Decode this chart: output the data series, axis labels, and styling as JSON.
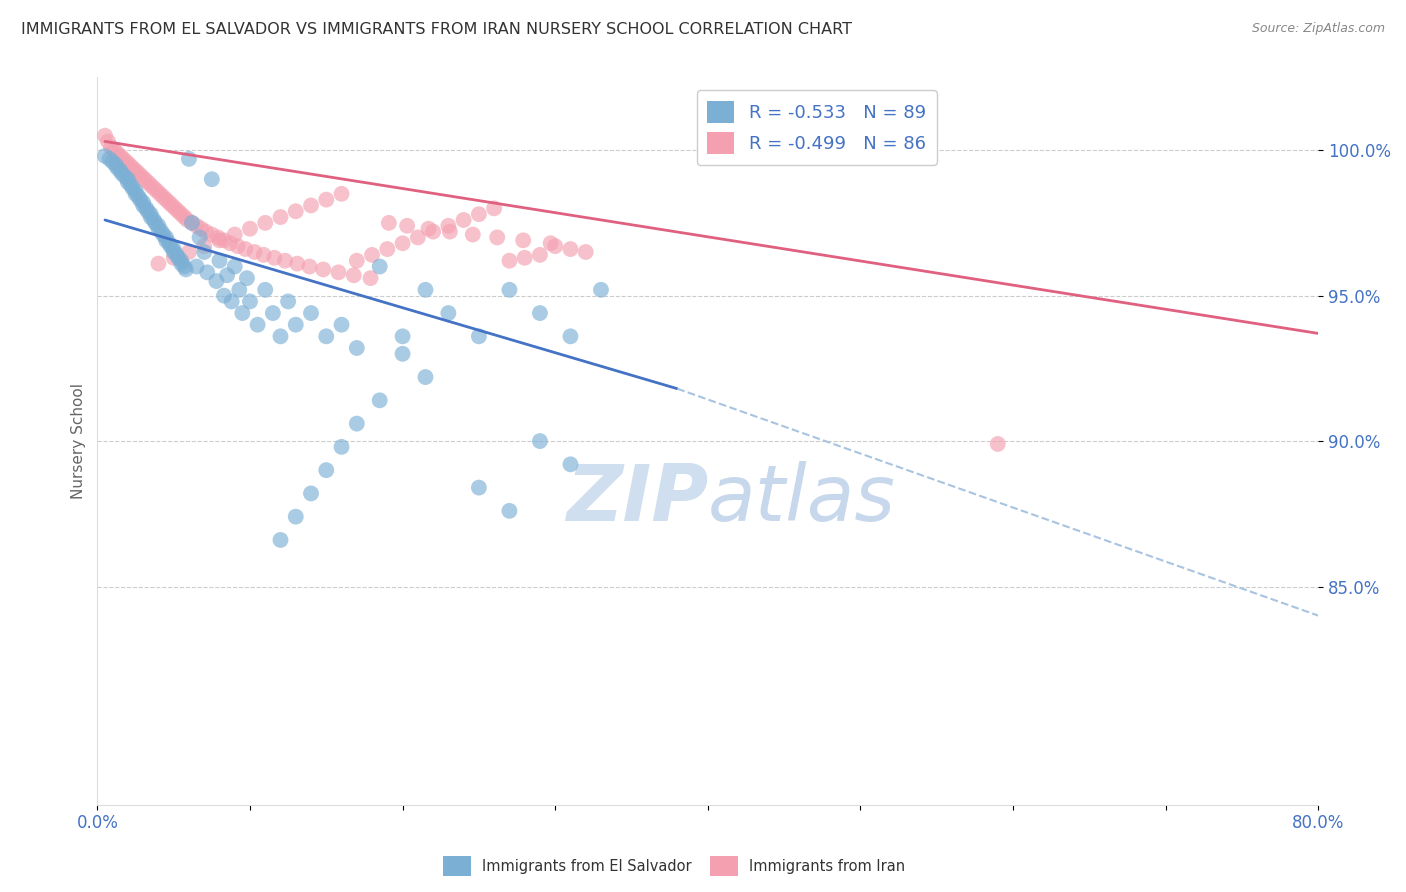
{
  "title": "IMMIGRANTS FROM EL SALVADOR VS IMMIGRANTS FROM IRAN NURSERY SCHOOL CORRELATION CHART",
  "source": "Source: ZipAtlas.com",
  "ylabel": "Nursery School",
  "y_tick_labels": [
    "100.0%",
    "95.0%",
    "90.0%",
    "85.0%"
  ],
  "y_tick_values": [
    1.0,
    0.95,
    0.9,
    0.85
  ],
  "x_range": [
    0.0,
    0.8
  ],
  "y_range": [
    0.775,
    1.025
  ],
  "blue_R": -0.533,
  "blue_N": 89,
  "pink_R": -0.499,
  "pink_N": 86,
  "blue_color": "#7BAFD4",
  "pink_color": "#F4A0B0",
  "blue_line_color": "#4472C4",
  "pink_line_color": "#E06080",
  "dashed_line_color": "#A8C4E0",
  "grid_color": "#CCCCCC",
  "title_color": "#333333",
  "axis_label_color": "#4472C4",
  "watermark_color": "#D0DFF0",
  "blue_scatter_x": [
    0.005,
    0.008,
    0.01,
    0.012,
    0.013,
    0.015,
    0.016,
    0.018,
    0.02,
    0.02,
    0.022,
    0.023,
    0.025,
    0.025,
    0.027,
    0.028,
    0.03,
    0.03,
    0.032,
    0.033,
    0.035,
    0.035,
    0.037,
    0.038,
    0.04,
    0.04,
    0.042,
    0.043,
    0.045,
    0.045,
    0.047,
    0.048,
    0.05,
    0.05,
    0.052,
    0.053,
    0.055,
    0.055,
    0.057,
    0.058,
    0.06,
    0.062,
    0.065,
    0.067,
    0.07,
    0.072,
    0.075,
    0.078,
    0.08,
    0.083,
    0.085,
    0.088,
    0.09,
    0.093,
    0.095,
    0.098,
    0.1,
    0.105,
    0.11,
    0.115,
    0.12,
    0.125,
    0.13,
    0.14,
    0.15,
    0.16,
    0.17,
    0.185,
    0.2,
    0.215,
    0.23,
    0.25,
    0.27,
    0.29,
    0.31,
    0.33,
    0.29,
    0.31,
    0.25,
    0.27,
    0.2,
    0.215,
    0.185,
    0.17,
    0.16,
    0.15,
    0.14,
    0.13,
    0.12
  ],
  "blue_scatter_y": [
    0.998,
    0.997,
    0.996,
    0.995,
    0.994,
    0.993,
    0.992,
    0.991,
    0.99,
    0.989,
    0.988,
    0.987,
    0.986,
    0.985,
    0.984,
    0.983,
    0.982,
    0.981,
    0.98,
    0.979,
    0.978,
    0.977,
    0.976,
    0.975,
    0.974,
    0.973,
    0.972,
    0.971,
    0.97,
    0.969,
    0.968,
    0.967,
    0.966,
    0.965,
    0.964,
    0.963,
    0.962,
    0.961,
    0.96,
    0.959,
    0.997,
    0.975,
    0.96,
    0.97,
    0.965,
    0.958,
    0.99,
    0.955,
    0.962,
    0.95,
    0.957,
    0.948,
    0.96,
    0.952,
    0.944,
    0.956,
    0.948,
    0.94,
    0.952,
    0.944,
    0.936,
    0.948,
    0.94,
    0.944,
    0.936,
    0.94,
    0.932,
    0.96,
    0.936,
    0.952,
    0.944,
    0.936,
    0.952,
    0.944,
    0.936,
    0.952,
    0.9,
    0.892,
    0.884,
    0.876,
    0.93,
    0.922,
    0.914,
    0.906,
    0.898,
    0.89,
    0.882,
    0.874,
    0.866
  ],
  "pink_scatter_x": [
    0.005,
    0.007,
    0.009,
    0.011,
    0.013,
    0.015,
    0.017,
    0.019,
    0.021,
    0.023,
    0.025,
    0.027,
    0.029,
    0.031,
    0.033,
    0.035,
    0.037,
    0.039,
    0.041,
    0.043,
    0.045,
    0.047,
    0.049,
    0.051,
    0.053,
    0.055,
    0.057,
    0.059,
    0.062,
    0.065,
    0.068,
    0.071,
    0.075,
    0.079,
    0.083,
    0.087,
    0.092,
    0.097,
    0.103,
    0.109,
    0.116,
    0.123,
    0.131,
    0.139,
    0.148,
    0.158,
    0.168,
    0.179,
    0.191,
    0.203,
    0.217,
    0.231,
    0.246,
    0.262,
    0.279,
    0.297,
    0.3,
    0.31,
    0.32,
    0.29,
    0.28,
    0.27,
    0.26,
    0.25,
    0.24,
    0.23,
    0.22,
    0.21,
    0.2,
    0.19,
    0.18,
    0.17,
    0.16,
    0.15,
    0.14,
    0.13,
    0.12,
    0.11,
    0.1,
    0.09,
    0.08,
    0.07,
    0.06,
    0.05,
    0.04,
    0.59
  ],
  "pink_scatter_y": [
    1.005,
    1.003,
    1.001,
    1.0,
    0.999,
    0.998,
    0.997,
    0.996,
    0.995,
    0.994,
    0.993,
    0.992,
    0.991,
    0.99,
    0.989,
    0.988,
    0.987,
    0.986,
    0.985,
    0.984,
    0.983,
    0.982,
    0.981,
    0.98,
    0.979,
    0.978,
    0.977,
    0.976,
    0.975,
    0.974,
    0.973,
    0.972,
    0.971,
    0.97,
    0.969,
    0.968,
    0.967,
    0.966,
    0.965,
    0.964,
    0.963,
    0.962,
    0.961,
    0.96,
    0.959,
    0.958,
    0.957,
    0.956,
    0.975,
    0.974,
    0.973,
    0.972,
    0.971,
    0.97,
    0.969,
    0.968,
    0.967,
    0.966,
    0.965,
    0.964,
    0.963,
    0.962,
    0.98,
    0.978,
    0.976,
    0.974,
    0.972,
    0.97,
    0.968,
    0.966,
    0.964,
    0.962,
    0.985,
    0.983,
    0.981,
    0.979,
    0.977,
    0.975,
    0.973,
    0.971,
    0.969,
    0.967,
    0.965,
    0.963,
    0.961,
    0.899
  ],
  "blue_trend_x": [
    0.005,
    0.38
  ],
  "blue_trend_y": [
    0.976,
    0.918
  ],
  "pink_trend_x": [
    0.005,
    0.8
  ],
  "pink_trend_y": [
    1.003,
    0.937
  ],
  "dashed_trend_x": [
    0.38,
    0.8
  ],
  "dashed_trend_y": [
    0.918,
    0.84
  ]
}
